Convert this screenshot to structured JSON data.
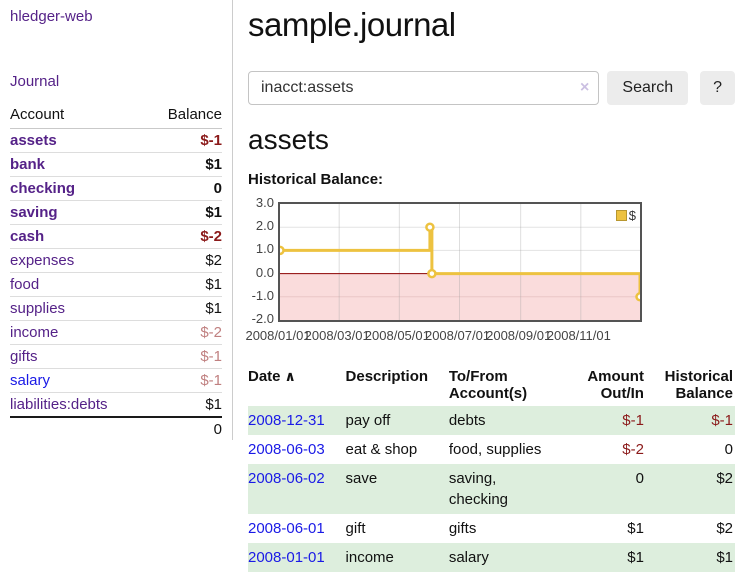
{
  "app": {
    "title": "hledger-web",
    "nav_journal": "Journal"
  },
  "sidebar": {
    "headers": {
      "account": "Account",
      "balance": "Balance"
    },
    "accounts": [
      {
        "name": "assets",
        "level": 1,
        "bold": true,
        "balance": "$-1",
        "tone": "neg-strong",
        "link_tone": "purple"
      },
      {
        "name": "bank",
        "level": 2,
        "bold": true,
        "balance": "$1",
        "tone": "pos",
        "link_tone": "purple"
      },
      {
        "name": "checking",
        "level": 3,
        "bold": true,
        "balance": "0",
        "tone": "pos",
        "link_tone": "purple"
      },
      {
        "name": "saving",
        "level": 3,
        "bold": true,
        "balance": "$1",
        "tone": "pos",
        "link_tone": "purple"
      },
      {
        "name": "cash",
        "level": 2,
        "bold": true,
        "balance": "$-2",
        "tone": "neg-strong",
        "link_tone": "purple"
      },
      {
        "name": "expenses",
        "level": 1,
        "bold": false,
        "balance": "$2",
        "tone": "pos",
        "link_tone": "purple"
      },
      {
        "name": "food",
        "level": 2,
        "bold": false,
        "balance": "$1",
        "tone": "pos",
        "link_tone": "purple"
      },
      {
        "name": "supplies",
        "level": 2,
        "bold": false,
        "balance": "$1",
        "tone": "pos",
        "link_tone": "purple"
      },
      {
        "name": "income",
        "level": 1,
        "bold": false,
        "balance": "$-2",
        "tone": "neg-muted",
        "link_tone": "purple"
      },
      {
        "name": "gifts",
        "level": 2,
        "bold": false,
        "balance": "$-1",
        "tone": "neg-muted",
        "link_tone": "purple"
      },
      {
        "name": "salary",
        "level": 2,
        "bold": false,
        "balance": "$-1",
        "tone": "neg-muted",
        "link_tone": "blue"
      },
      {
        "name": "liabilities:debts",
        "level": 1,
        "bold": false,
        "balance": "$1",
        "tone": "pos",
        "link_tone": "purple"
      }
    ],
    "total": "0"
  },
  "header": {
    "title": "sample.journal"
  },
  "search": {
    "value": "inacct:assets",
    "clear_icon": "×",
    "button_label": "Search",
    "help_label": "?"
  },
  "account_page": {
    "title": "assets",
    "chart_label": "Historical Balance:"
  },
  "chart_data": {
    "type": "line",
    "title": "Historical Balance of assets",
    "step": true,
    "series": [
      {
        "name": "$",
        "color": "#edc240",
        "points": [
          [
            "2008-01-01",
            1
          ],
          [
            "2008-06-01",
            2
          ],
          [
            "2008-06-03",
            0
          ],
          [
            "2008-12-31",
            -1
          ]
        ]
      }
    ],
    "x_range": [
      "2008-01-01",
      "2008-12-31"
    ],
    "x_tick_labels": [
      "2008/01/01",
      "2008/03/01",
      "2008/05/01",
      "2008/07/01",
      "2008/09/01",
      "2008/11/01"
    ],
    "x_tick_dates": [
      "2008-01-01",
      "2008-03-01",
      "2008-05-01",
      "2008-07-01",
      "2008-09-01",
      "2008-11-01"
    ],
    "y_tick_labels": [
      "3.0",
      "2.0",
      "1.0",
      "0.0",
      "-1.0",
      "-2.0"
    ],
    "y_tick_values": [
      3,
      2,
      1,
      0,
      -1,
      -2
    ],
    "ylim": [
      -2,
      3
    ],
    "grid": true,
    "legend": {
      "label": "$",
      "position": "top-right",
      "swatch_color": "#edc240"
    },
    "negative_region_color": "#fadcdc",
    "zero_line_color": "#8b0000"
  },
  "register": {
    "headers": {
      "date": "Date",
      "sort_icon": "∧",
      "description": "Description",
      "accounts": "To/From Account(s)",
      "amount": "Amount Out/In",
      "balance": "Historical Balance"
    },
    "rows": [
      {
        "date": "2008-12-31",
        "description": "pay off",
        "accounts": "debts",
        "amount": "$-1",
        "amount_tone": "neg",
        "balance": "$-1",
        "balance_tone": "neg",
        "green": true
      },
      {
        "date": "2008-06-03",
        "description": "eat & shop",
        "accounts": "food, supplies",
        "amount": "$-2",
        "amount_tone": "neg",
        "balance": "0",
        "balance_tone": "pos",
        "green": false
      },
      {
        "date": "2008-06-02",
        "description": "save",
        "accounts": "saving, checking",
        "amount": "0",
        "amount_tone": "pos",
        "balance": "$2",
        "balance_tone": "pos",
        "green": true,
        "tall": true
      },
      {
        "date": "2008-06-01",
        "description": "gift",
        "accounts": "gifts",
        "amount": "$1",
        "amount_tone": "pos",
        "balance": "$2",
        "balance_tone": "pos",
        "green": false
      },
      {
        "date": "2008-01-01",
        "description": "income",
        "accounts": "salary",
        "amount": "$1",
        "amount_tone": "pos",
        "balance": "$1",
        "balance_tone": "pos",
        "green": true
      }
    ]
  },
  "colors": {
    "link_purple": "#552288",
    "link_blue": "#1a1ae6",
    "negative_strong": "#8b1a1a",
    "negative_muted": "#c08080",
    "row_stripe_green": "#ddeedd",
    "series_gold": "#edc240"
  }
}
